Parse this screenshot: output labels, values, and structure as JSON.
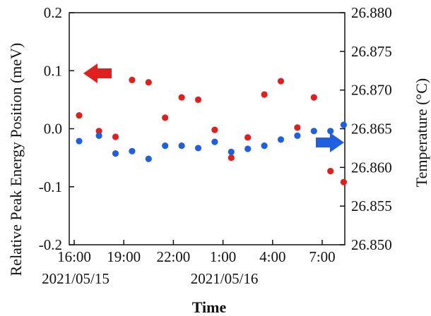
{
  "chart_data": {
    "type": "scatter",
    "xlabel": "Time",
    "ylabel_left": "Relative Peak Energy Position (meV)",
    "ylabel_right": "Temperature (°C)",
    "x_ticks": [
      {
        "hour": 16,
        "time": "16:00",
        "date": "2021/05/15"
      },
      {
        "hour": 19,
        "time": "19:00",
        "date": ""
      },
      {
        "hour": 22,
        "time": "22:00",
        "date": ""
      },
      {
        "hour": 25,
        "time": "1:00",
        "date": "2021/05/16"
      },
      {
        "hour": 28,
        "time": "4:00",
        "date": ""
      },
      {
        "hour": 31,
        "time": "7:00",
        "date": ""
      }
    ],
    "xlim_hours": [
      16,
      32.2
    ],
    "ylim_left": [
      -0.2,
      0.2
    ],
    "ylim_right": [
      26.85,
      26.88
    ],
    "y_ticks_left": [
      {
        "value": 0.2,
        "label": "0.2"
      },
      {
        "value": 0.1,
        "label": "0.1"
      },
      {
        "value": 0.0,
        "label": "0.0"
      },
      {
        "value": -0.1,
        "label": "-0.1"
      },
      {
        "value": -0.2,
        "label": "-0.2"
      }
    ],
    "y_ticks_right": [
      {
        "value": 26.88,
        "label": "26.880"
      },
      {
        "value": 26.875,
        "label": "26.875"
      },
      {
        "value": 26.87,
        "label": "26.870"
      },
      {
        "value": 26.865,
        "label": "26.865"
      },
      {
        "value": 26.86,
        "label": "26.860"
      },
      {
        "value": 26.855,
        "label": "26.855"
      },
      {
        "value": 26.85,
        "label": "26.850"
      }
    ],
    "series": [
      {
        "axis": "left",
        "color": "#e0201e",
        "points": [
          {
            "x": 16.3,
            "y": 0.023
          },
          {
            "x": 17.5,
            "y": -0.004
          },
          {
            "x": 18.5,
            "y": -0.014
          },
          {
            "x": 19.5,
            "y": 0.084
          },
          {
            "x": 20.5,
            "y": 0.08
          },
          {
            "x": 21.5,
            "y": 0.019
          },
          {
            "x": 22.5,
            "y": 0.054
          },
          {
            "x": 23.5,
            "y": 0.05
          },
          {
            "x": 24.5,
            "y": -0.002
          },
          {
            "x": 25.5,
            "y": -0.05
          },
          {
            "x": 26.5,
            "y": -0.015
          },
          {
            "x": 27.5,
            "y": 0.059
          },
          {
            "x": 28.5,
            "y": 0.082
          },
          {
            "x": 29.5,
            "y": 0.002
          },
          {
            "x": 30.5,
            "y": 0.054
          },
          {
            "x": 31.5,
            "y": -0.073
          },
          {
            "x": 32.3,
            "y": -0.092
          }
        ]
      },
      {
        "axis": "right",
        "color": "#1f5fe0",
        "points": [
          {
            "x": 16.3,
            "y": 26.8634
          },
          {
            "x": 17.5,
            "y": 26.8641
          },
          {
            "x": 18.5,
            "y": 26.8618
          },
          {
            "x": 19.5,
            "y": 26.8621
          },
          {
            "x": 20.5,
            "y": 26.8611
          },
          {
            "x": 21.5,
            "y": 26.8628
          },
          {
            "x": 22.5,
            "y": 26.8628
          },
          {
            "x": 23.5,
            "y": 26.8625
          },
          {
            "x": 24.5,
            "y": 26.8633
          },
          {
            "x": 25.5,
            "y": 26.862
          },
          {
            "x": 26.5,
            "y": 26.8624
          },
          {
            "x": 27.5,
            "y": 26.8628
          },
          {
            "x": 28.5,
            "y": 26.8636
          },
          {
            "x": 29.5,
            "y": 26.8641
          },
          {
            "x": 30.5,
            "y": 26.8647
          },
          {
            "x": 31.5,
            "y": 26.8647
          },
          {
            "x": 32.3,
            "y": 26.8655
          }
        ]
      }
    ],
    "annotations": [
      {
        "type": "arrow",
        "direction": "left",
        "color": "#e0201e",
        "points_to": "left axis"
      },
      {
        "type": "arrow",
        "direction": "right",
        "color": "#1f5fe0",
        "points_to": "right axis"
      }
    ],
    "grid": false
  }
}
